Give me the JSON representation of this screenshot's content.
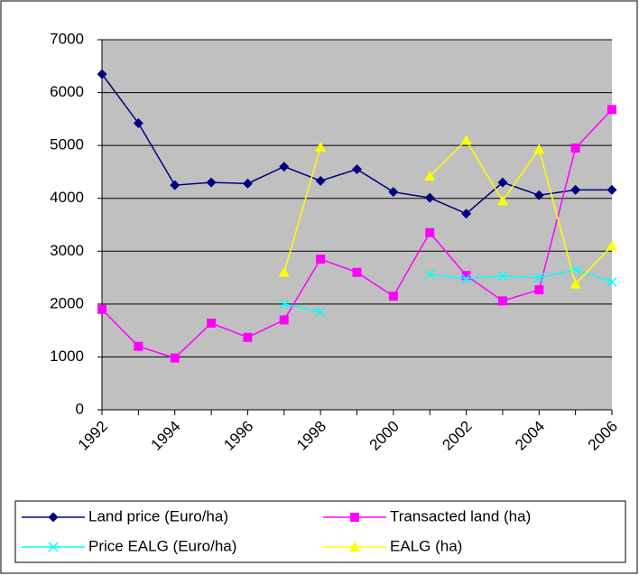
{
  "chart_data": {
    "type": "line",
    "categories": [
      "1992",
      null,
      "1994",
      null,
      "1996",
      null,
      "1998",
      null,
      "2000",
      null,
      "2002",
      null,
      "2004",
      null,
      "2006"
    ],
    "series": [
      {
        "name": "Land price (Euro/ha)",
        "color": "#000080",
        "marker": "diamond",
        "values": [
          6350,
          5420,
          4250,
          4300,
          4280,
          4600,
          4330,
          4550,
          4120,
          4010,
          3710,
          4300,
          4060,
          4160,
          4160
        ]
      },
      {
        "name": "Transacted land (ha)",
        "color": "#ff00ff",
        "marker": "square",
        "values": [
          1900,
          1200,
          980,
          1640,
          1370,
          1700,
          2850,
          2600,
          2150,
          3350,
          2540,
          2060,
          2270,
          4950,
          5680
        ]
      },
      {
        "name": "Price EALG (Euro/ha)",
        "color": "#00ffff",
        "marker": "x",
        "values": [
          null,
          null,
          null,
          null,
          null,
          2000,
          1850,
          null,
          null,
          2560,
          2480,
          2530,
          2500,
          2650,
          2420
        ]
      },
      {
        "name": "EALG (ha)",
        "color": "#ffff00",
        "marker": "triangle",
        "values": [
          null,
          null,
          null,
          null,
          null,
          2600,
          4970,
          null,
          null,
          4420,
          5100,
          3950,
          4930,
          2380,
          3100
        ]
      }
    ],
    "ylim": [
      0,
      7000
    ],
    "yticks": [
      0,
      1000,
      2000,
      3000,
      4000,
      5000,
      6000,
      7000
    ],
    "grid": true,
    "legend": "bottom"
  }
}
